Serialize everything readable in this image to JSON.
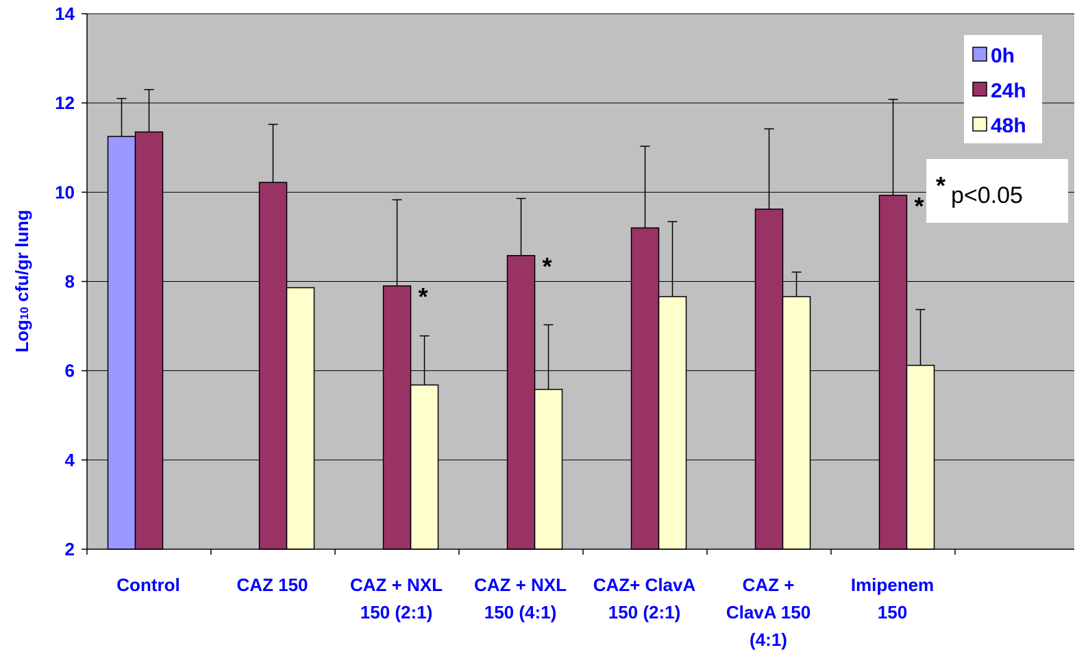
{
  "chart_data": {
    "type": "bar",
    "ylabel_main": "Log",
    "ylabel_sub": "10",
    "ylabel_rest": " cfu/gr lung",
    "ylim": [
      2,
      14
    ],
    "yticks": [
      2,
      4,
      6,
      8,
      10,
      12,
      14
    ],
    "grid": true,
    "legend_position": "top-right",
    "categories": [
      [
        "Control"
      ],
      [
        "CAZ 150"
      ],
      [
        "CAZ + NXL",
        "150 (2:1)"
      ],
      [
        "CAZ + NXL",
        "150 (4:1)"
      ],
      [
        "CAZ+ ClavA",
        "150 (2:1)"
      ],
      [
        "CAZ +",
        "ClavA 150",
        "(4:1)"
      ],
      [
        "Imipenem",
        "150"
      ]
    ],
    "series": [
      {
        "name": "0h",
        "color": "#9999ff",
        "values": [
          11.25,
          null,
          null,
          null,
          null,
          null,
          null
        ],
        "error": [
          0.85,
          null,
          null,
          null,
          null,
          null,
          null
        ]
      },
      {
        "name": "24h",
        "color": "#993366",
        "values": [
          11.35,
          10.22,
          7.9,
          8.58,
          9.2,
          9.62,
          9.93
        ],
        "error": [
          0.95,
          1.3,
          1.93,
          1.28,
          1.83,
          1.8,
          2.15
        ]
      },
      {
        "name": "48h",
        "color": "#ffffcc",
        "values": [
          null,
          7.86,
          5.68,
          5.58,
          7.66,
          7.66,
          6.12
        ],
        "error": [
          null,
          null,
          1.1,
          1.45,
          1.68,
          0.55,
          1.25
        ]
      }
    ],
    "significant": [
      false,
      false,
      true,
      true,
      false,
      false,
      true
    ],
    "significance_marker": "*",
    "note_marker": "*",
    "note_text": "p<0.05"
  }
}
